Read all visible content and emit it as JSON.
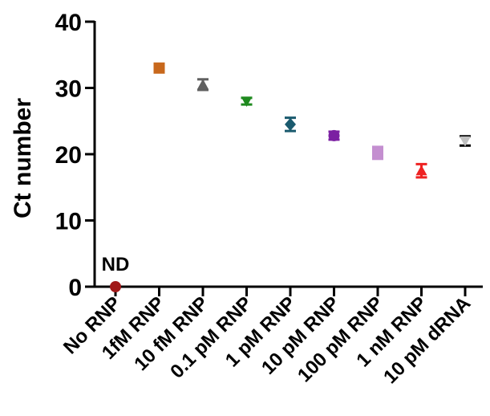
{
  "chart_data": {
    "type": "scatter",
    "title": "",
    "xlabel": "",
    "ylabel": "Ct number",
    "ylim": [
      0,
      40
    ],
    "yticks": [
      0,
      10,
      20,
      30,
      40
    ],
    "grid": false,
    "legend": "none",
    "categories": [
      "No RNP",
      "1fM RNP",
      "10 fM RNP",
      "0.1 pM RNP",
      "1 pM RNP",
      "10 pM RNP",
      "100 pM RNP",
      "1 nM RNP",
      "10 pM dRNA"
    ],
    "values": [
      0,
      33.0,
      30.5,
      28.0,
      24.5,
      22.8,
      20.2,
      17.5,
      22.0
    ],
    "error": [
      0,
      0,
      0.8,
      0.5,
      1.0,
      0.6,
      0.9,
      1.0,
      0.7
    ],
    "markers": [
      "circle",
      "square",
      "triangle-up",
      "triangle-down",
      "diamond",
      "circle",
      "square",
      "triangle-up",
      "triangle-down"
    ],
    "colors": [
      "#a01818",
      "#c8681c",
      "#606060",
      "#1f8a1f",
      "#1a5a6e",
      "#7b1fa2",
      "#c48fd0",
      "#ee2222",
      "#000000"
    ],
    "marker_colors": [
      "#a01818",
      "#c8681c",
      "#606060",
      "#1f8a1f",
      "#1a5a6e",
      "#7b1fa2",
      "#c48fd0",
      "#ee2222",
      "#c0c0c0"
    ],
    "annotations": [
      {
        "category": "No RNP",
        "text": "ND"
      }
    ]
  }
}
